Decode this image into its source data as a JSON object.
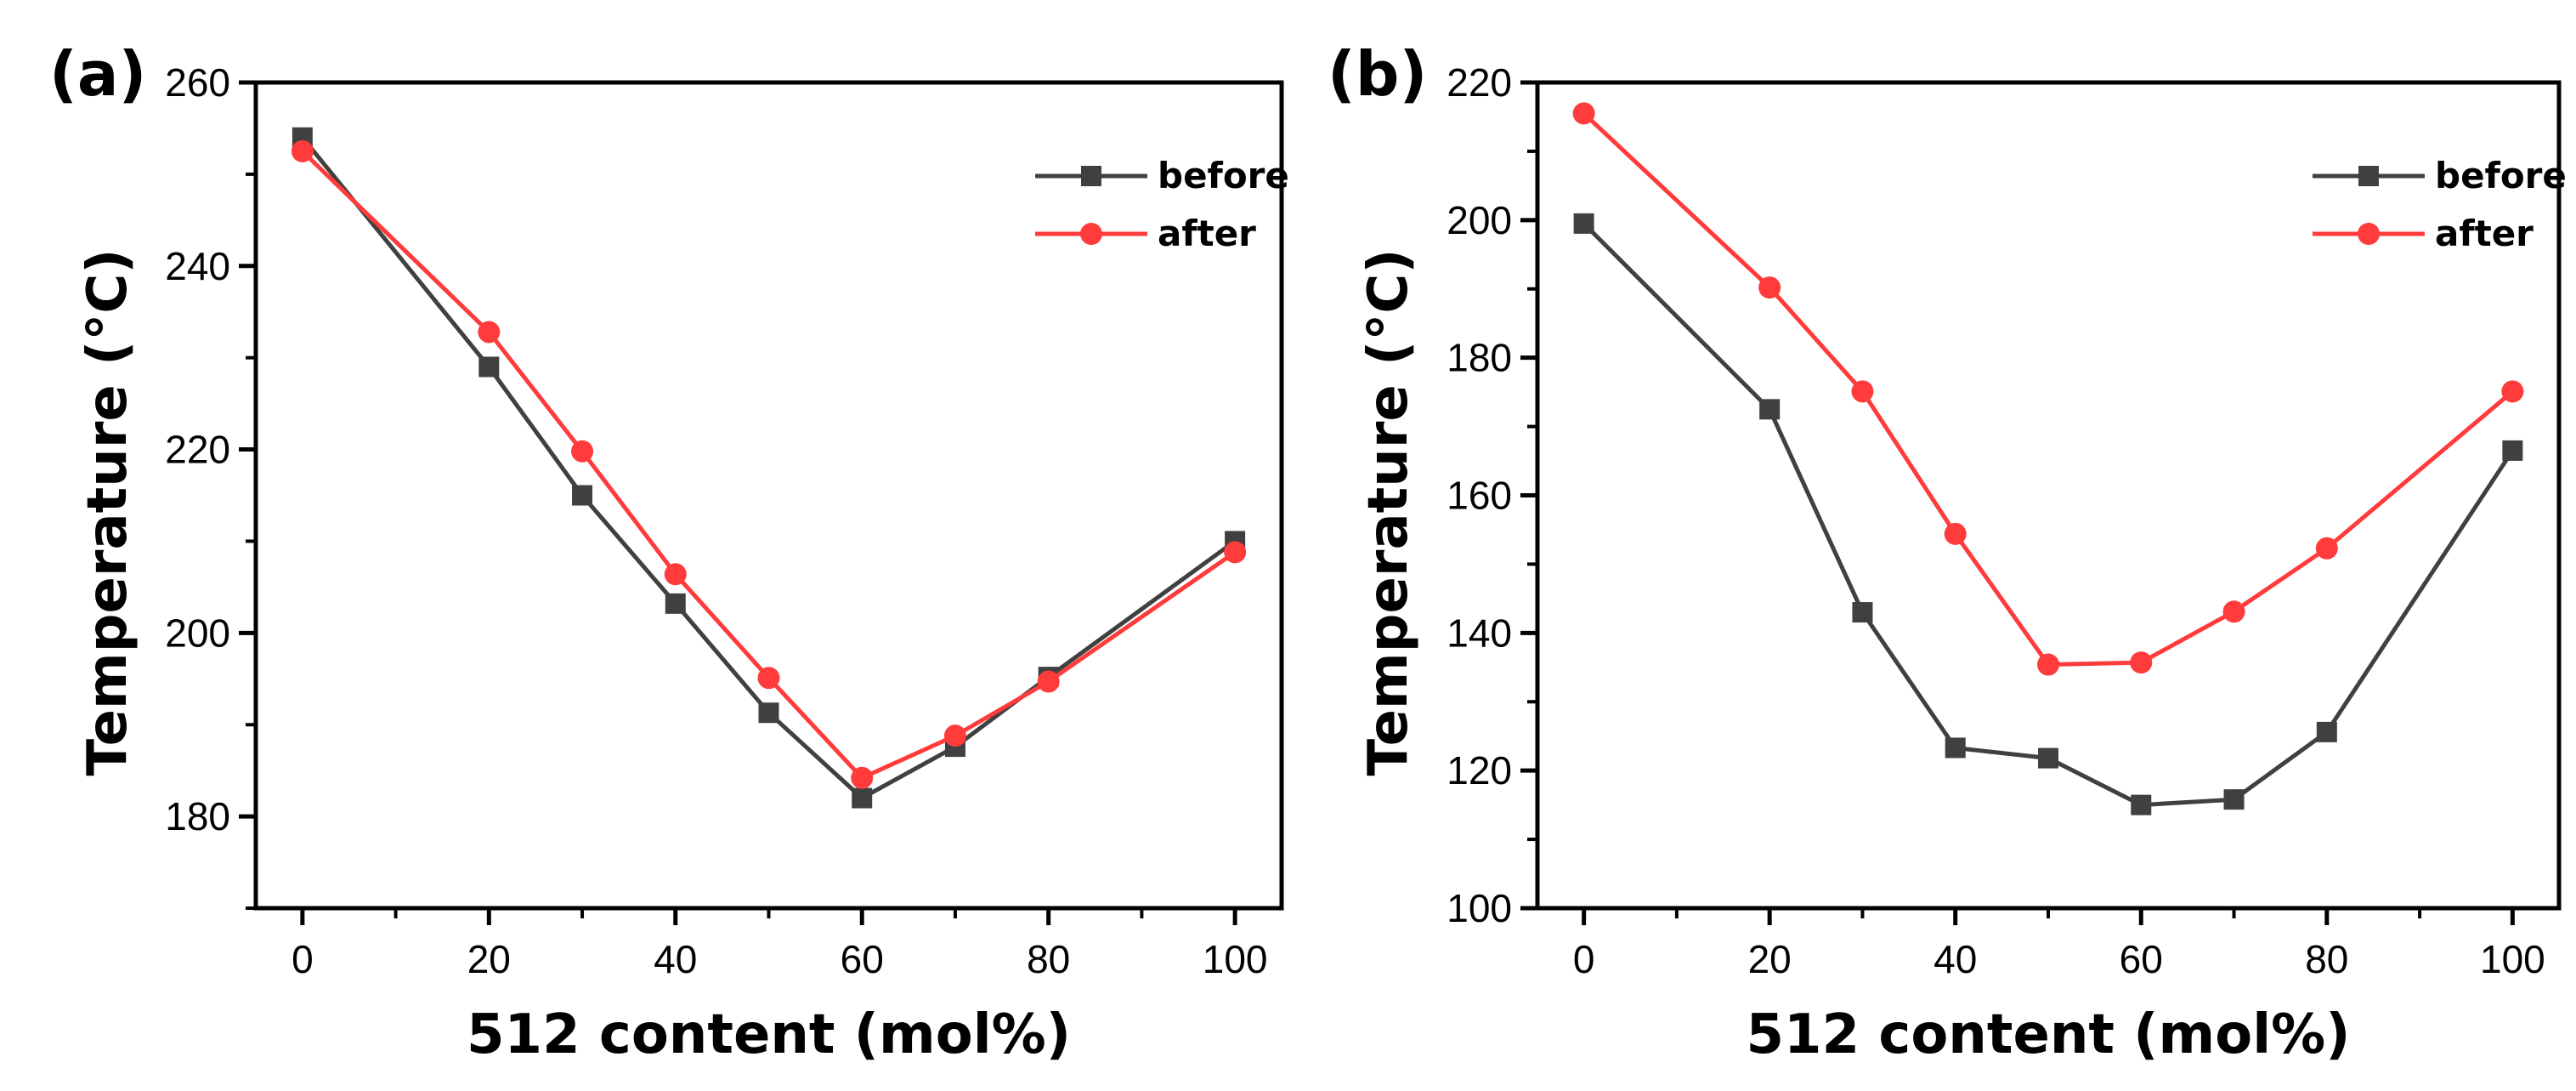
{
  "chart_data": [
    {
      "type": "line",
      "panel_label": "(a)",
      "xlabel": "512 content (mol%)",
      "ylabel": "Temperature (°C)",
      "xlim": [
        -5,
        105
      ],
      "ylim": [
        170,
        260
      ],
      "xticks": [
        0,
        20,
        40,
        60,
        80,
        100
      ],
      "yticks": [
        180,
        200,
        220,
        240,
        260
      ],
      "legend_position": "top-right",
      "series": [
        {
          "name": "before",
          "color": "#404040",
          "marker": "square",
          "x": [
            0,
            20,
            30,
            40,
            50,
            60,
            70,
            80,
            100
          ],
          "y": [
            254,
            229,
            215,
            203.2,
            191.3,
            182,
            187.6,
            195.2,
            210
          ]
        },
        {
          "name": "after",
          "color": "#ff3b3b",
          "marker": "circle",
          "x": [
            0,
            20,
            30,
            40,
            50,
            60,
            70,
            80,
            100
          ],
          "y": [
            252.5,
            232.8,
            219.8,
            206.4,
            195.1,
            184.2,
            188.8,
            194.7,
            208.8
          ]
        }
      ]
    },
    {
      "type": "line",
      "panel_label": "(b)",
      "xlabel": "512 content (mol%)",
      "ylabel": "Temperature (°C)",
      "xlim": [
        -5,
        105
      ],
      "ylim": [
        100,
        220
      ],
      "xticks": [
        0,
        20,
        40,
        60,
        80,
        100
      ],
      "yticks": [
        100,
        120,
        140,
        160,
        180,
        200,
        220
      ],
      "legend_position": "top-right",
      "series": [
        {
          "name": "before",
          "color": "#404040",
          "marker": "square",
          "x": [
            0,
            20,
            30,
            40,
            50,
            60,
            70,
            80,
            100
          ],
          "y": [
            199.5,
            172.5,
            143,
            123.3,
            121.8,
            115,
            115.8,
            125.6,
            166.5
          ]
        },
        {
          "name": "after",
          "color": "#ff3b3b",
          "marker": "circle",
          "x": [
            0,
            20,
            30,
            40,
            50,
            60,
            70,
            80,
            100
          ],
          "y": [
            215.5,
            190.2,
            175.1,
            154.4,
            135.4,
            135.7,
            143.1,
            152.3,
            175.1
          ]
        }
      ]
    }
  ]
}
